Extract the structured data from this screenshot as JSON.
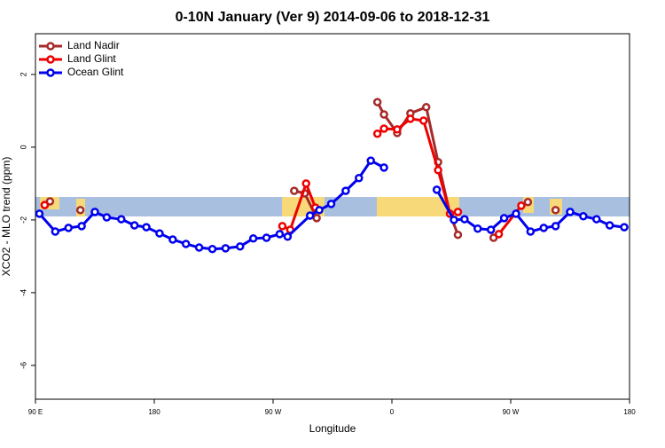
{
  "chart_data": {
    "type": "line",
    "title": "0-10N January (Ver 9)   2014-09-06 to 2018-12-31",
    "x_label": "Longitude",
    "y_label": "XCO2 - MLO trend (ppm)",
    "xlim": [
      90,
      540
    ],
    "ylim": [
      -6.93,
      3.12
    ],
    "xticks": [
      {
        "value": 90,
        "label": "90 E"
      },
      {
        "value": 180,
        "label": "180"
      },
      {
        "value": 270,
        "label": "90 W"
      },
      {
        "value": 360,
        "label": "0"
      },
      {
        "value": 450,
        "label": "90 W"
      },
      {
        "value": 540,
        "label": "180"
      }
    ],
    "yticks": [
      2,
      0,
      -2,
      -4,
      -6
    ],
    "legend": "top-left",
    "series": [
      {
        "name": "Land Nadir",
        "color": "#a52a2a",
        "x": [
          97,
          101,
          null,
          124,
          null,
          286,
          294,
          303,
          null,
          349,
          354,
          364,
          374,
          386,
          395,
          404,
          410,
          null,
          437,
          null,
          463,
          null,
          484
        ],
        "values": [
          -1.59,
          -1.49,
          null,
          -1.73,
          null,
          -1.2,
          -1.27,
          -1.95,
          null,
          1.24,
          0.9,
          0.39,
          0.93,
          1.1,
          -0.41,
          -1.83,
          -2.41,
          null,
          -2.49,
          null,
          -1.51,
          null,
          -1.73
        ]
      },
      {
        "name": "Land Glint",
        "color": "#ee0000",
        "x": [
          97,
          null,
          277,
          283,
          295,
          302,
          null,
          349,
          354,
          364,
          374,
          384,
          395,
          404,
          410,
          null,
          441,
          458
        ],
        "values": [
          -1.59,
          null,
          -2.17,
          -2.27,
          -1.0,
          -1.66,
          null,
          0.37,
          0.51,
          0.49,
          0.78,
          0.73,
          -0.63,
          -1.83,
          -1.78,
          null,
          -2.39,
          -1.61
        ]
      },
      {
        "name": "Ocean Glint",
        "color": "#0000ee",
        "x": [
          93,
          105,
          115,
          125,
          135,
          144,
          155,
          165,
          174,
          184,
          194,
          204,
          214,
          224,
          234,
          245,
          255,
          265,
          275,
          281,
          298,
          305,
          314,
          325,
          335,
          344,
          354,
          null,
          394,
          407,
          415,
          425,
          435,
          445,
          454,
          465,
          475,
          484,
          495,
          505,
          515,
          525,
          536
        ],
        "values": [
          -1.83,
          -2.32,
          -2.22,
          -2.17,
          -1.78,
          -1.93,
          -1.98,
          -2.15,
          -2.2,
          -2.37,
          -2.54,
          -2.66,
          -2.76,
          -2.8,
          -2.78,
          -2.73,
          -2.51,
          -2.49,
          -2.39,
          -2.46,
          -1.88,
          -1.73,
          -1.56,
          -1.2,
          -0.85,
          -0.37,
          -0.56,
          null,
          -1.17,
          -2.0,
          -1.98,
          -2.24,
          -2.27,
          -1.95,
          -1.83,
          -2.32,
          -2.22,
          -2.17,
          -1.78,
          -1.9,
          -1.98,
          -2.15,
          -2.2
        ]
      }
    ]
  }
}
